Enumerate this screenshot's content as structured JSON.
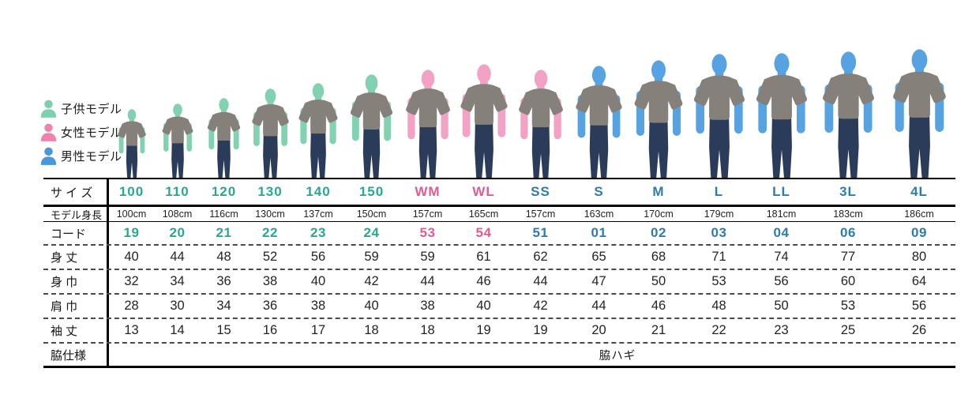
{
  "legend": {
    "items": [
      {
        "id": "child",
        "icon": "person-bust-icon",
        "label": "子供モデル",
        "color": "#7ecfae"
      },
      {
        "id": "woman",
        "icon": "person-bust-icon",
        "label": "女性モデル",
        "color": "#f083ab"
      },
      {
        "id": "man",
        "icon": "person-bust-icon",
        "label": "男性モデル",
        "color": "#4a97d9"
      }
    ]
  },
  "table": {
    "row_labels": {
      "size": "サ イ ズ",
      "model_height": "モデル身長",
      "code": "コード",
      "body_length": "身 丈",
      "body_width": "身 巾",
      "shoulder_width": "肩 巾",
      "sleeve_length": "袖 丈",
      "side_spec": "脇仕様"
    },
    "group_colors": {
      "child": "#2aa78e",
      "woman": "#e25c93",
      "man": "#2e7cae"
    },
    "side_spec_value": "脇ハギ",
    "columns": [
      {
        "size": "100",
        "model_height": "100cm",
        "code": "19",
        "body_length": "40",
        "body_width": "32",
        "shoulder_width": "28",
        "sleeve_length": "13",
        "label_group": "child",
        "figure_group": "child"
      },
      {
        "size": "110",
        "model_height": "108cm",
        "code": "20",
        "body_length": "44",
        "body_width": "34",
        "shoulder_width": "30",
        "sleeve_length": "14",
        "label_group": "child",
        "figure_group": "child"
      },
      {
        "size": "120",
        "model_height": "116cm",
        "code": "21",
        "body_length": "48",
        "body_width": "36",
        "shoulder_width": "34",
        "sleeve_length": "15",
        "label_group": "child",
        "figure_group": "child"
      },
      {
        "size": "130",
        "model_height": "130cm",
        "code": "22",
        "body_length": "52",
        "body_width": "38",
        "shoulder_width": "36",
        "sleeve_length": "16",
        "label_group": "child",
        "figure_group": "child"
      },
      {
        "size": "140",
        "model_height": "137cm",
        "code": "23",
        "body_length": "56",
        "body_width": "40",
        "shoulder_width": "38",
        "sleeve_length": "17",
        "label_group": "child",
        "figure_group": "child"
      },
      {
        "size": "150",
        "model_height": "150cm",
        "code": "24",
        "body_length": "59",
        "body_width": "42",
        "shoulder_width": "40",
        "sleeve_length": "18",
        "label_group": "child",
        "figure_group": "child"
      },
      {
        "size": "WM",
        "model_height": "157cm",
        "code": "53",
        "body_length": "59",
        "body_width": "44",
        "shoulder_width": "38",
        "sleeve_length": "18",
        "label_group": "woman",
        "figure_group": "woman"
      },
      {
        "size": "WL",
        "model_height": "165cm",
        "code": "54",
        "body_length": "61",
        "body_width": "46",
        "shoulder_width": "40",
        "sleeve_length": "19",
        "label_group": "woman",
        "figure_group": "woman"
      },
      {
        "size": "SS",
        "model_height": "157cm",
        "code": "51",
        "body_length": "62",
        "body_width": "44",
        "shoulder_width": "42",
        "sleeve_length": "19",
        "label_group": "man",
        "figure_group": "woman"
      },
      {
        "size": "S",
        "model_height": "163cm",
        "code": "01",
        "body_length": "65",
        "body_width": "47",
        "shoulder_width": "44",
        "sleeve_length": "20",
        "label_group": "man",
        "figure_group": "man"
      },
      {
        "size": "M",
        "model_height": "170cm",
        "code": "02",
        "body_length": "68",
        "body_width": "50",
        "shoulder_width": "46",
        "sleeve_length": "21",
        "label_group": "man",
        "figure_group": "man"
      },
      {
        "size": "L",
        "model_height": "179cm",
        "code": "03",
        "body_length": "71",
        "body_width": "53",
        "shoulder_width": "48",
        "sleeve_length": "22",
        "label_group": "man",
        "figure_group": "man"
      },
      {
        "size": "LL",
        "model_height": "181cm",
        "code": "04",
        "body_length": "74",
        "body_width": "56",
        "shoulder_width": "50",
        "sleeve_length": "23",
        "label_group": "man",
        "figure_group": "man"
      },
      {
        "size": "3L",
        "model_height": "183cm",
        "code": "06",
        "body_length": "77",
        "body_width": "60",
        "shoulder_width": "53",
        "sleeve_length": "25",
        "label_group": "man",
        "figure_group": "man"
      },
      {
        "size": "4L",
        "model_height": "186cm",
        "code": "09",
        "body_length": "80",
        "body_width": "64",
        "shoulder_width": "56",
        "sleeve_length": "26",
        "label_group": "man",
        "figure_group": "man"
      }
    ]
  },
  "figures": {
    "shirt_color": "#85807a",
    "pants_color": "#2b3c5b",
    "skin_colors": {
      "child": "#82d1b1",
      "woman": "#f2a2c5",
      "man": "#57a3e2"
    }
  }
}
